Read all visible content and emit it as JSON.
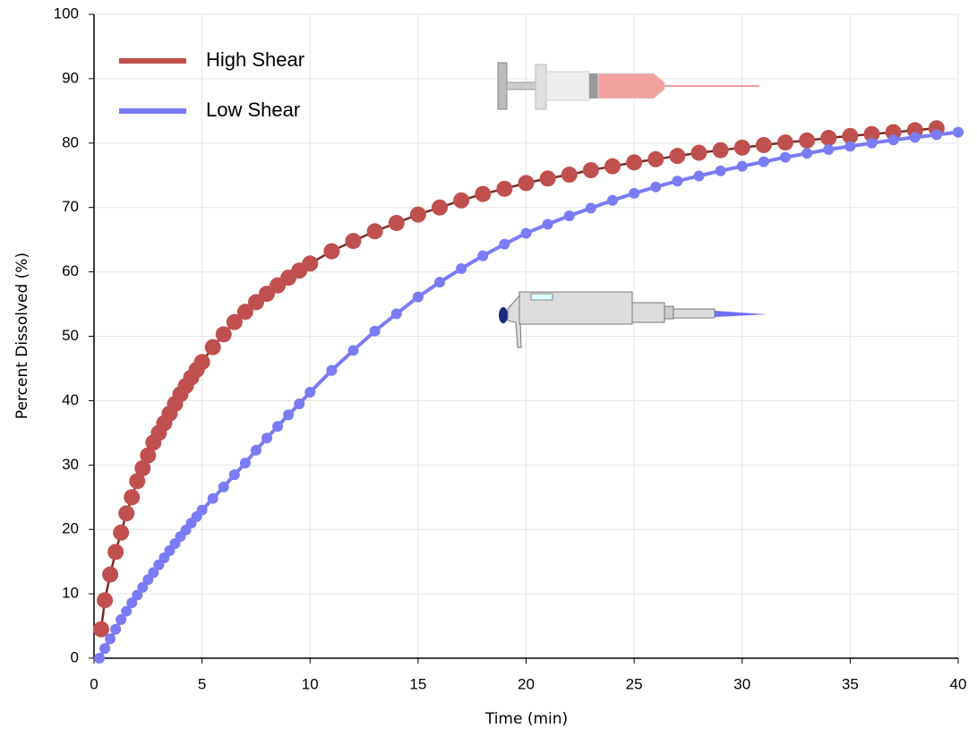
{
  "chart_data": {
    "type": "line",
    "xlabel": "Time (min)",
    "ylabel": "Percent Dissolved  (%)",
    "xlim": [
      0,
      40
    ],
    "xticks": [
      0,
      5,
      10,
      15,
      20,
      25,
      30,
      35,
      40
    ],
    "ylim": [
      0,
      100
    ],
    "yticks": [
      0,
      10,
      20,
      30,
      40,
      50,
      60,
      70,
      80,
      90,
      100
    ],
    "grid": true,
    "legend": "upper left",
    "markers": true,
    "series": [
      {
        "name": "High Shear",
        "color": "#c0504d",
        "x": [
          0.33,
          0.5,
          0.75,
          1,
          1.25,
          1.5,
          1.75,
          2,
          2.25,
          2.5,
          2.75,
          3,
          3.25,
          3.5,
          3.75,
          4,
          4.25,
          4.5,
          4.75,
          5,
          5.5,
          6,
          6.5,
          7,
          7.5,
          8,
          8.5,
          9,
          9.5,
          10,
          11,
          12,
          13,
          14,
          15,
          16,
          17,
          18,
          19,
          20,
          21,
          22,
          23,
          24,
          25,
          26,
          27,
          28,
          29,
          30,
          31,
          32,
          33,
          34,
          35,
          36,
          37,
          38,
          39
        ],
        "values": [
          4.5,
          9,
          13,
          16.5,
          19.5,
          22.5,
          25,
          27.5,
          29.5,
          31.5,
          33.5,
          35,
          36.5,
          38,
          39.5,
          41,
          42.3,
          43.6,
          44.8,
          46,
          48.3,
          50.3,
          52.2,
          53.8,
          55.3,
          56.6,
          57.9,
          59.1,
          60.2,
          61.3,
          63.2,
          64.8,
          66.3,
          67.6,
          68.9,
          70,
          71.1,
          72.1,
          72.9,
          73.8,
          74.5,
          75.1,
          75.8,
          76.4,
          77,
          77.5,
          78,
          78.5,
          78.9,
          79.3,
          79.7,
          80.1,
          80.4,
          80.8,
          81.1,
          81.4,
          81.7,
          82,
          82.3
        ]
      },
      {
        "name": "Low Shear",
        "color": "#7b7bf5",
        "x": [
          0.25,
          0.5,
          0.75,
          1,
          1.25,
          1.5,
          1.75,
          2,
          2.25,
          2.5,
          2.75,
          3,
          3.25,
          3.5,
          3.75,
          4,
          4.25,
          4.5,
          4.75,
          5,
          5.5,
          6,
          6.5,
          7,
          7.5,
          8,
          8.5,
          9,
          9.5,
          10,
          11,
          12,
          13,
          14,
          15,
          16,
          17,
          18,
          19,
          20,
          21,
          22,
          23,
          24,
          25,
          26,
          27,
          28,
          29,
          30,
          31,
          32,
          33,
          34,
          35,
          36,
          37,
          38,
          39,
          40
        ],
        "values": [
          0,
          1.5,
          3,
          4.5,
          6,
          7.3,
          8.6,
          9.8,
          11,
          12.2,
          13.3,
          14.5,
          15.6,
          16.7,
          17.8,
          18.9,
          19.9,
          21,
          22,
          23,
          24.8,
          26.6,
          28.5,
          30.3,
          32.3,
          34.2,
          36,
          37.8,
          39.5,
          41.3,
          44.7,
          47.8,
          50.8,
          53.5,
          56.1,
          58.4,
          60.5,
          62.5,
          64.3,
          66,
          67.4,
          68.7,
          69.9,
          71.1,
          72.2,
          73.2,
          74.1,
          74.9,
          75.7,
          76.4,
          77.1,
          77.8,
          78.4,
          79,
          79.5,
          80,
          80.5,
          80.9,
          81.3,
          81.7
        ]
      }
    ]
  }
}
